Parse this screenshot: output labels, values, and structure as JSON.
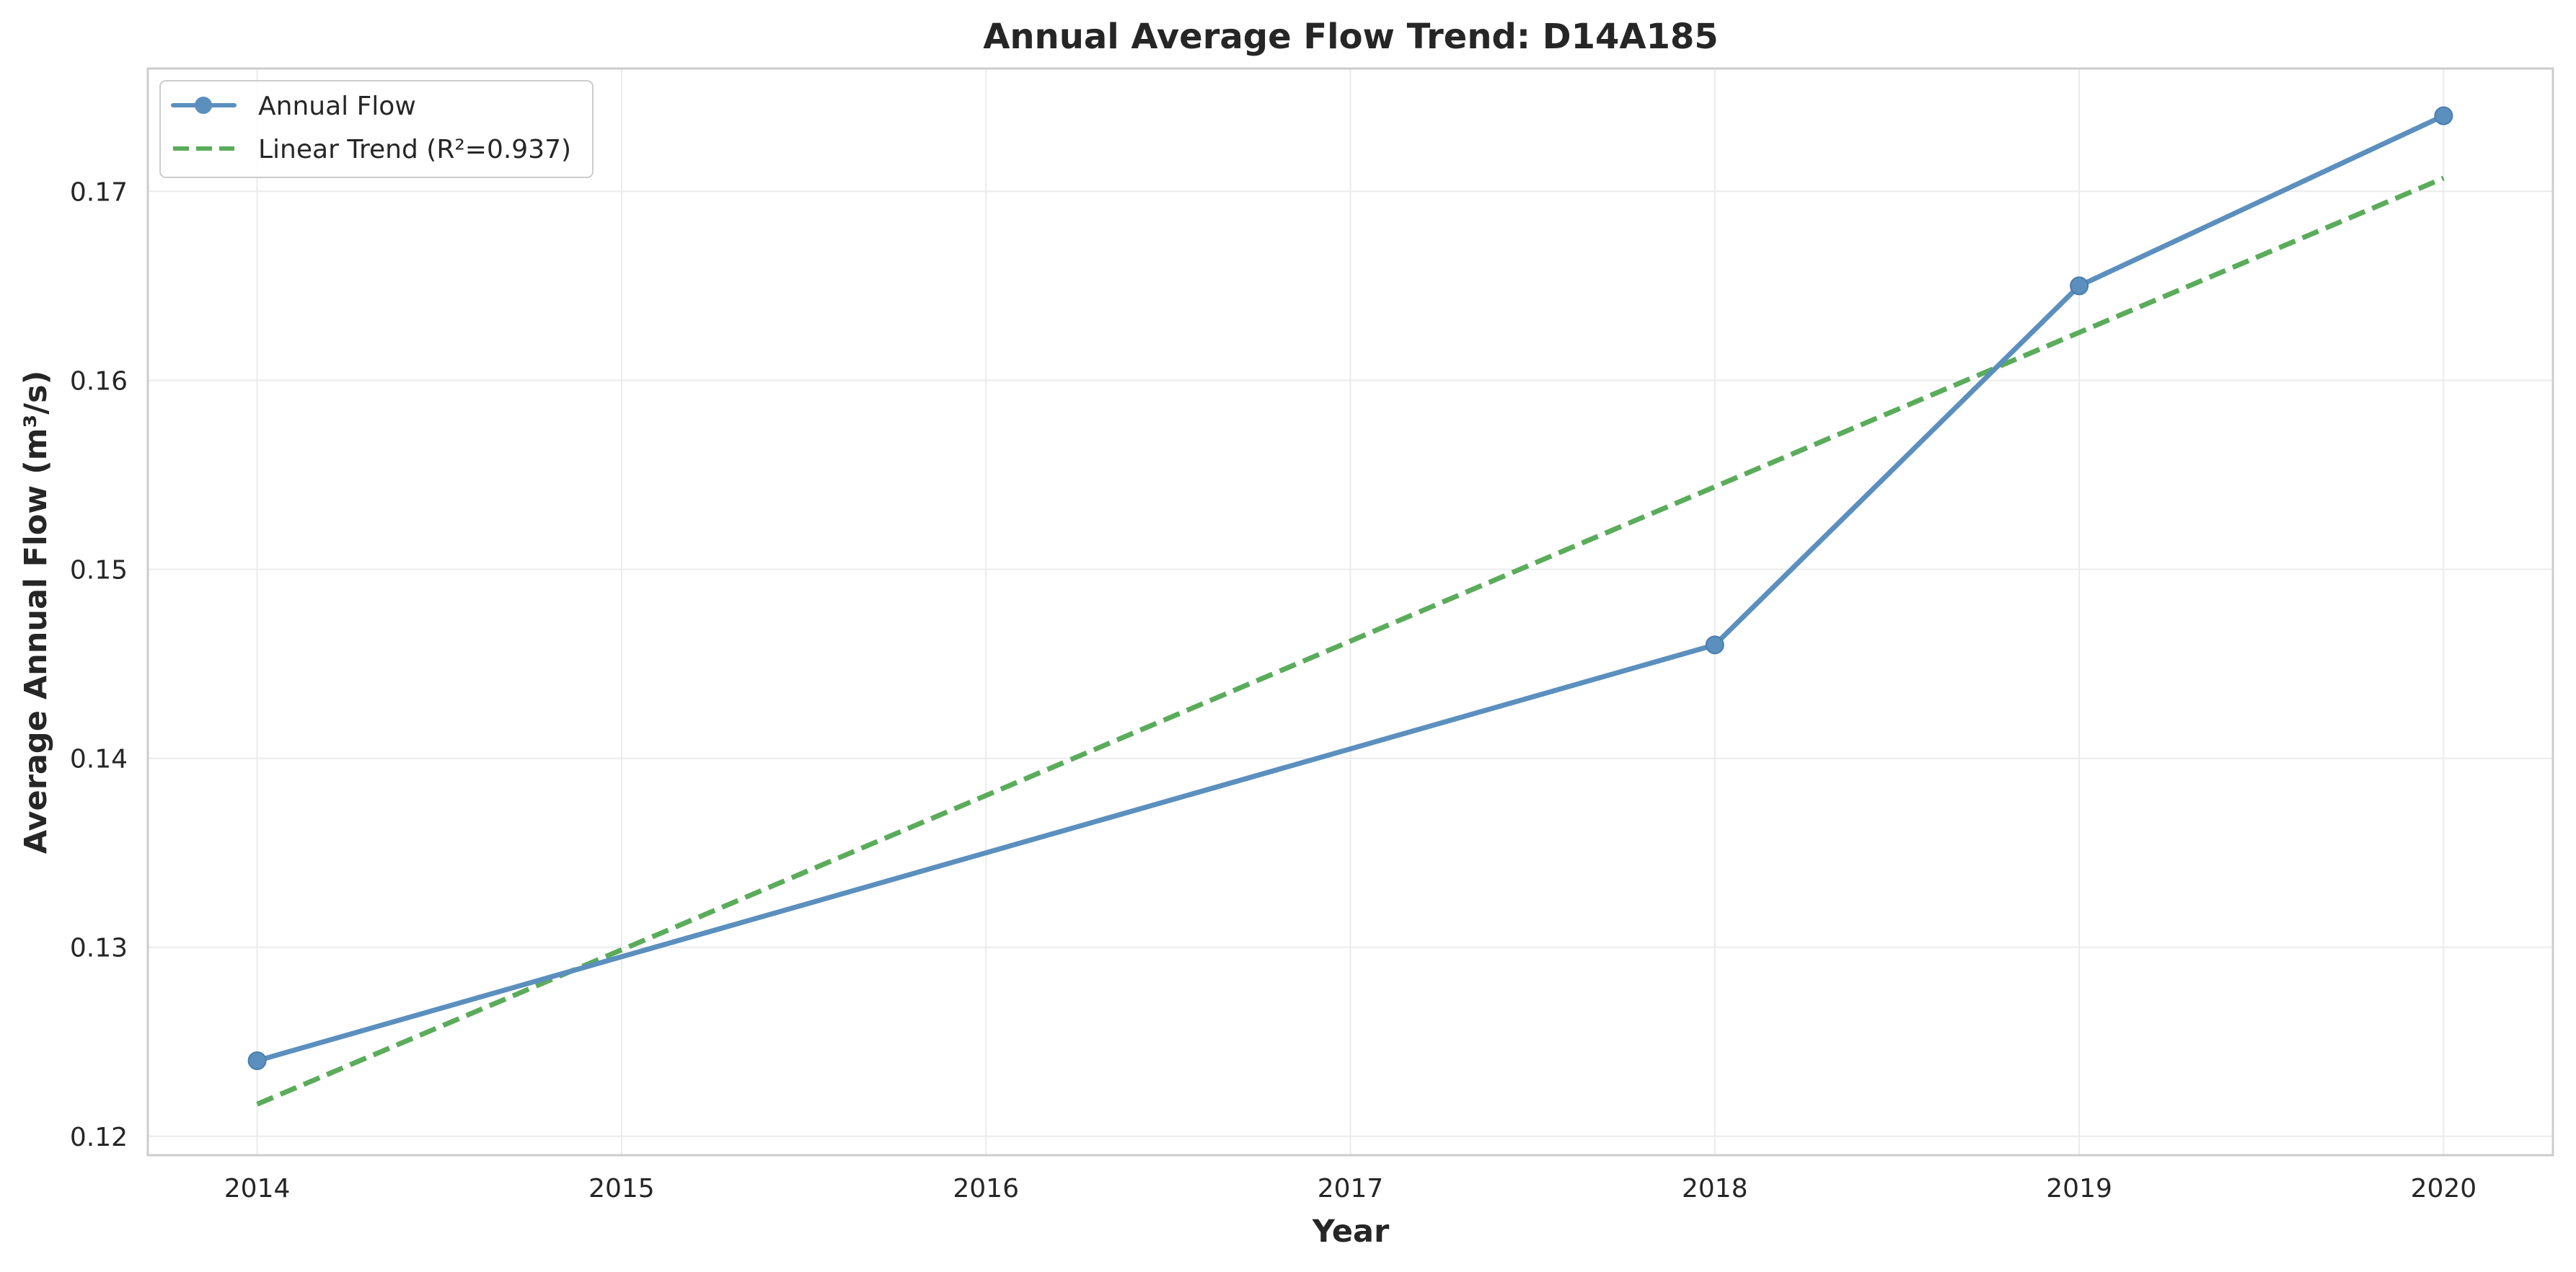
{
  "chart_data": {
    "type": "line",
    "title": "Annual Average Flow Trend: D14A185",
    "xlabel": "Year",
    "ylabel": "Average Annual Flow (m³/s)",
    "xlim": [
      2013.7,
      2020.3
    ],
    "ylim": [
      0.119,
      0.1765
    ],
    "x_ticks": [
      2014,
      2015,
      2016,
      2017,
      2018,
      2019,
      2020
    ],
    "y_ticks": [
      0.12,
      0.13,
      0.14,
      0.15,
      0.16,
      0.17
    ],
    "grid": true,
    "legend_position": "top-left",
    "series": [
      {
        "name": "Annual Flow",
        "style": "solid-with-markers",
        "color": "#5b8fbe",
        "points": [
          [
            2014,
            0.124
          ],
          [
            2018,
            0.146
          ],
          [
            2019,
            0.165
          ],
          [
            2020,
            0.174
          ]
        ]
      },
      {
        "name": "Linear Trend (R²=0.937)",
        "style": "dashed",
        "color": "#5aac5a",
        "points": [
          [
            2014,
            0.1217
          ],
          [
            2020,
            0.1707
          ]
        ]
      }
    ]
  }
}
